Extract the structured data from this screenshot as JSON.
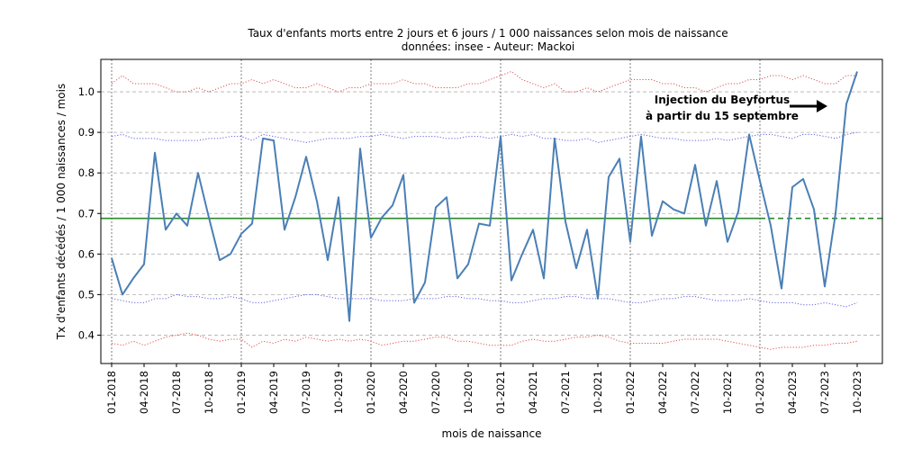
{
  "chart_data": {
    "type": "line",
    "title": "Taux d'enfants morts entre 2 jours et 6 jours / 1 000 naissances selon mois de naissance",
    "subtitle": "données: insee - Auteur: Mackoi",
    "xlabel": "mois de naissance",
    "ylabel": "Tx d'enfants décédés / 1 000 naissances / mois",
    "ylim": [
      0.33,
      1.08
    ],
    "yticks": [
      "0.4",
      "0.5",
      "0.6",
      "0.7",
      "0.8",
      "0.9",
      "1.0"
    ],
    "x_tick_labels": [
      "01-2018",
      "04-2018",
      "07-2018",
      "10-2018",
      "01-2019",
      "04-2019",
      "07-2019",
      "10-2019",
      "01-2020",
      "04-2020",
      "07-2020",
      "10-2020",
      "01-2021",
      "04-2021",
      "07-2021",
      "10-2021",
      "01-2022",
      "04-2022",
      "07-2022",
      "10-2022",
      "01-2023",
      "04-2023",
      "07-2023",
      "10-2023"
    ],
    "x": [
      "01-2018",
      "02-2018",
      "03-2018",
      "04-2018",
      "05-2018",
      "06-2018",
      "07-2018",
      "08-2018",
      "09-2018",
      "10-2018",
      "11-2018",
      "12-2018",
      "01-2019",
      "02-2019",
      "03-2019",
      "04-2019",
      "05-2019",
      "06-2019",
      "07-2019",
      "08-2019",
      "09-2019",
      "10-2019",
      "11-2019",
      "12-2019",
      "01-2020",
      "02-2020",
      "03-2020",
      "04-2020",
      "05-2020",
      "06-2020",
      "07-2020",
      "08-2020",
      "09-2020",
      "10-2020",
      "11-2020",
      "12-2020",
      "01-2021",
      "02-2021",
      "03-2021",
      "04-2021",
      "05-2021",
      "06-2021",
      "07-2021",
      "08-2021",
      "09-2021",
      "10-2021",
      "11-2021",
      "12-2021",
      "01-2022",
      "02-2022",
      "03-2022",
      "04-2022",
      "05-2022",
      "06-2022",
      "07-2022",
      "08-2022",
      "09-2022",
      "10-2022",
      "11-2022",
      "12-2022",
      "01-2023",
      "02-2023",
      "03-2023",
      "04-2023",
      "05-2023",
      "06-2023",
      "07-2023",
      "08-2023",
      "09-2023",
      "10-2023"
    ],
    "series": [
      {
        "role": "main",
        "color": "#4a7fb5",
        "style": "solid",
        "values": [
          0.59,
          0.5,
          0.54,
          0.575,
          0.85,
          0.66,
          0.7,
          0.67,
          0.8,
          0.69,
          0.585,
          0.6,
          0.65,
          0.675,
          0.885,
          0.88,
          0.66,
          0.74,
          0.84,
          0.73,
          0.585,
          0.74,
          0.435,
          0.86,
          0.64,
          0.69,
          0.72,
          0.795,
          0.48,
          0.53,
          0.715,
          0.74,
          0.54,
          0.575,
          0.675,
          0.67,
          0.89,
          0.535,
          0.6,
          0.66,
          0.54,
          0.885,
          0.68,
          0.565,
          0.66,
          0.49,
          0.79,
          0.835,
          0.63,
          0.89,
          0.645,
          0.73,
          0.71,
          0.7,
          0.82,
          0.67,
          0.78,
          0.63,
          0.705,
          0.895,
          0.78,
          0.67,
          0.515,
          0.765,
          0.785,
          0.71,
          0.52,
          0.7,
          0.97,
          1.05
        ]
      },
      {
        "role": "upper-outer",
        "color": "#e05050",
        "style": "dotted",
        "values": [
          1.02,
          1.04,
          1.02,
          1.02,
          1.02,
          1.01,
          1.0,
          1.0,
          1.01,
          1.0,
          1.01,
          1.02,
          1.02,
          1.03,
          1.02,
          1.03,
          1.02,
          1.01,
          1.01,
          1.02,
          1.01,
          1.0,
          1.01,
          1.01,
          1.02,
          1.02,
          1.02,
          1.03,
          1.02,
          1.02,
          1.01,
          1.01,
          1.01,
          1.02,
          1.02,
          1.03,
          1.04,
          1.05,
          1.03,
          1.02,
          1.01,
          1.02,
          1.0,
          1.0,
          1.01,
          1.0,
          1.01,
          1.02,
          1.03,
          1.03,
          1.03,
          1.02,
          1.02,
          1.01,
          1.01,
          1.0,
          1.01,
          1.02,
          1.02,
          1.03,
          1.03,
          1.04,
          1.04,
          1.03,
          1.04,
          1.03,
          1.02,
          1.02,
          1.04,
          1.04
        ]
      },
      {
        "role": "upper-inner",
        "color": "#6060e0",
        "style": "dotted",
        "values": [
          0.89,
          0.895,
          0.885,
          0.885,
          0.885,
          0.88,
          0.88,
          0.88,
          0.88,
          0.885,
          0.885,
          0.89,
          0.89,
          0.88,
          0.895,
          0.89,
          0.885,
          0.88,
          0.875,
          0.88,
          0.885,
          0.885,
          0.885,
          0.89,
          0.89,
          0.895,
          0.89,
          0.885,
          0.89,
          0.89,
          0.89,
          0.885,
          0.885,
          0.89,
          0.89,
          0.885,
          0.89,
          0.895,
          0.89,
          0.895,
          0.885,
          0.885,
          0.88,
          0.88,
          0.885,
          0.875,
          0.88,
          0.885,
          0.89,
          0.895,
          0.89,
          0.885,
          0.885,
          0.88,
          0.88,
          0.88,
          0.885,
          0.88,
          0.885,
          0.89,
          0.895,
          0.895,
          0.89,
          0.885,
          0.895,
          0.895,
          0.89,
          0.885,
          0.895,
          0.9
        ]
      },
      {
        "role": "lower-inner",
        "color": "#6060e0",
        "style": "dotted",
        "values": [
          0.49,
          0.485,
          0.48,
          0.48,
          0.49,
          0.49,
          0.5,
          0.495,
          0.495,
          0.49,
          0.49,
          0.495,
          0.49,
          0.48,
          0.48,
          0.485,
          0.49,
          0.495,
          0.5,
          0.5,
          0.495,
          0.49,
          0.49,
          0.49,
          0.49,
          0.485,
          0.485,
          0.485,
          0.49,
          0.49,
          0.49,
          0.495,
          0.495,
          0.49,
          0.49,
          0.485,
          0.485,
          0.48,
          0.48,
          0.485,
          0.49,
          0.49,
          0.495,
          0.495,
          0.49,
          0.49,
          0.49,
          0.485,
          0.48,
          0.48,
          0.485,
          0.49,
          0.49,
          0.495,
          0.495,
          0.49,
          0.485,
          0.485,
          0.485,
          0.49,
          0.485,
          0.48,
          0.48,
          0.48,
          0.475,
          0.475,
          0.48,
          0.475,
          0.47,
          0.48
        ]
      },
      {
        "role": "lower-outer",
        "color": "#e05050",
        "style": "dotted",
        "values": [
          0.38,
          0.375,
          0.385,
          0.375,
          0.385,
          0.395,
          0.4,
          0.405,
          0.4,
          0.39,
          0.385,
          0.39,
          0.39,
          0.37,
          0.385,
          0.38,
          0.39,
          0.385,
          0.395,
          0.39,
          0.385,
          0.39,
          0.385,
          0.39,
          0.385,
          0.375,
          0.38,
          0.385,
          0.385,
          0.39,
          0.395,
          0.395,
          0.385,
          0.385,
          0.38,
          0.375,
          0.375,
          0.375,
          0.385,
          0.39,
          0.385,
          0.385,
          0.39,
          0.395,
          0.395,
          0.4,
          0.395,
          0.385,
          0.38,
          0.38,
          0.38,
          0.38,
          0.385,
          0.39,
          0.39,
          0.39,
          0.39,
          0.385,
          0.38,
          0.375,
          0.37,
          0.365,
          0.37,
          0.37,
          0.37,
          0.375,
          0.375,
          0.38,
          0.38,
          0.385
        ]
      }
    ],
    "mean_line": {
      "value": 0.688,
      "color": "#2a8a2a"
    },
    "annotation": {
      "line1": "Injection du Beyfortus",
      "line2": "à partir du 15 septembre",
      "arrow_target_month": "09-2023"
    },
    "grid": true
  }
}
